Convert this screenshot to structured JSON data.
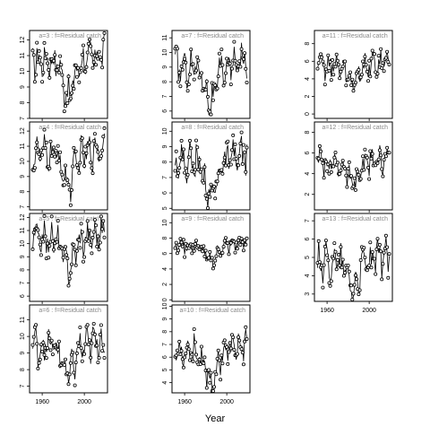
{
  "chart_data": {
    "type": "scatter",
    "xlabel": "Year",
    "x_ticks": [
      1960,
      2000
    ],
    "x_range": [
      1948,
      2022
    ],
    "panels": [
      {
        "title": "a=3  :  f=Residual catch",
        "ylim": [
          7,
          12.6
        ],
        "yticks": [
          7,
          8,
          9,
          10,
          11,
          12
        ],
        "base": 10.7,
        "amp": 1.0,
        "dip": 2.2
      },
      {
        "title": "a=4  :  f=Residual catch",
        "ylim": [
          6.8,
          12.6
        ],
        "yticks": [
          7,
          8,
          9,
          10,
          11,
          12
        ],
        "base": 10.5,
        "amp": 1.0,
        "dip": 2.0
      },
      {
        "title": "a=5  :  f=Residual catch",
        "ylim": [
          5.6,
          12.3
        ],
        "yticks": [
          6,
          7,
          8,
          9,
          10,
          11,
          12
        ],
        "base": 10.4,
        "amp": 1.1,
        "dip": 2.2
      },
      {
        "title": "a=6  :  f=Residual catch",
        "ylim": [
          6.6,
          11.9
        ],
        "yticks": [
          7,
          8,
          9,
          10,
          11
        ],
        "base": 9.4,
        "amp": 1.0,
        "dip": 1.8
      },
      {
        "title": "a=7  :  f=Residual catch",
        "ylim": [
          5.5,
          11.5
        ],
        "yticks": [
          6,
          7,
          8,
          9,
          10,
          11
        ],
        "base": 9.0,
        "amp": 1.1,
        "dip": 2.4
      },
      {
        "title": "a=8  :  f=Residual catch",
        "ylim": [
          4.9,
          10.6
        ],
        "yticks": [
          5,
          6,
          7,
          8,
          9,
          10
        ],
        "base": 8.0,
        "amp": 1.1,
        "dip": 2.2
      },
      {
        "title": "a=9  :  f=Residual catch",
        "ylim": [
          -0.2,
          11.2
        ],
        "yticks": [
          0,
          2,
          4,
          6,
          8,
          10
        ],
        "base": 7.0,
        "amp": 0.9,
        "dip": 2.0
      },
      {
        "title": "a=10  :  f=Residual catch",
        "ylim": [
          3.2,
          10.1
        ],
        "yticks": [
          4,
          5,
          6,
          7,
          8,
          9,
          10
        ],
        "base": 6.5,
        "amp": 1.1,
        "dip": 2.4
      },
      {
        "title": "a=11  :  f=Residual catch",
        "ylim": [
          -0.5,
          9.5
        ],
        "yticks": [
          0,
          2,
          4,
          6,
          8
        ],
        "base": 5.5,
        "amp": 1.3,
        "dip": 2.0
      },
      {
        "title": "a=12  :  f=Residual catch",
        "ylim": [
          0.5,
          9.0
        ],
        "yticks": [
          2,
          4,
          6,
          8
        ],
        "base": 5.0,
        "amp": 1.2,
        "dip": 2.2
      },
      {
        "title": "a=13  :  f=Residual catch",
        "ylim": [
          2.6,
          7.4
        ],
        "yticks": [
          3,
          4,
          5,
          6,
          7
        ],
        "base": 4.8,
        "amp": 0.9,
        "dip": 1.4
      }
    ]
  }
}
